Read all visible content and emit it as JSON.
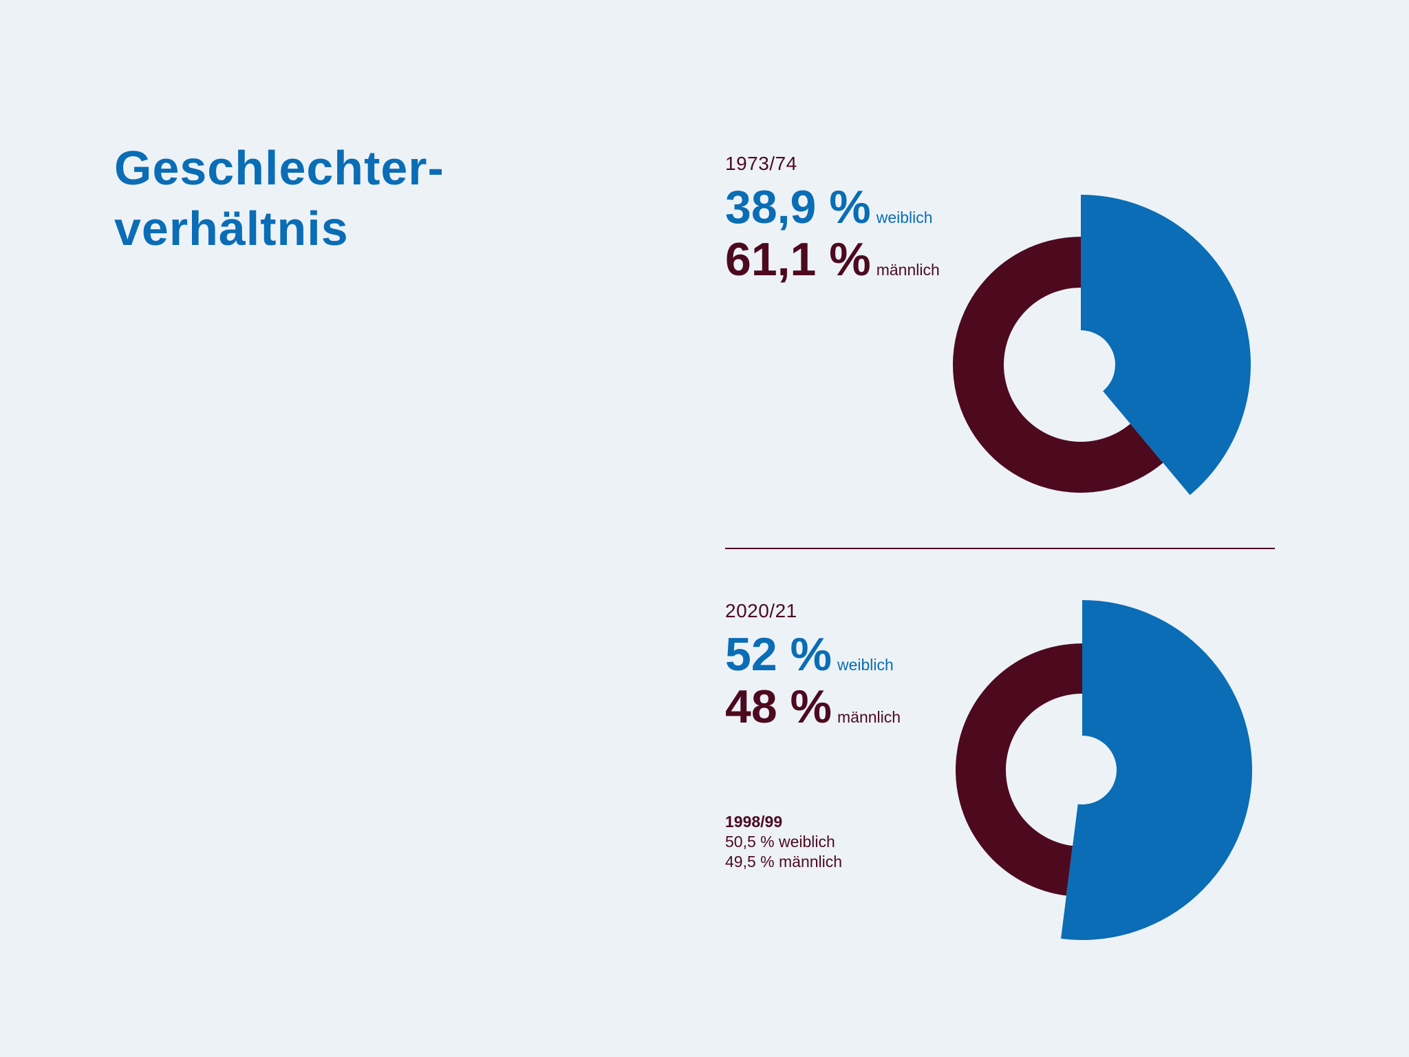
{
  "title_line1": "Geschlechter-",
  "title_line2": "verhältnis",
  "colors": {
    "female": "#0a6db5",
    "male": "#4d0a1f",
    "background": "#edf2f7"
  },
  "chart_data": [
    {
      "type": "pie",
      "period": "1973/74",
      "series": [
        {
          "name": "weiblich",
          "value": 38.9,
          "label": "38,9 %"
        },
        {
          "name": "männlich",
          "value": 61.1,
          "label": "61,1 %"
        }
      ]
    },
    {
      "type": "pie",
      "period": "2020/21",
      "series": [
        {
          "name": "weiblich",
          "value": 52,
          "label": "52 %"
        },
        {
          "name": "männlich",
          "value": 48,
          "label": "48 %"
        }
      ],
      "note": {
        "heading": "1998/99",
        "lines": [
          "50,5 % weiblich",
          "49,5 % männlich"
        ]
      }
    }
  ]
}
